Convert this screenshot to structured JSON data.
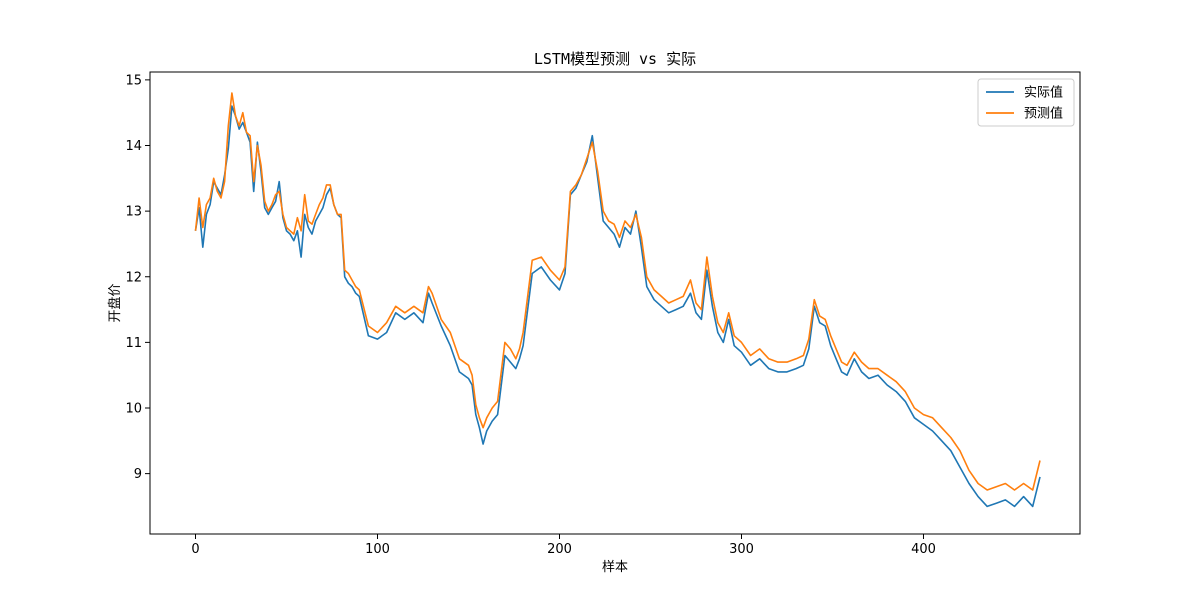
{
  "chart_data": {
    "type": "line",
    "title": "LSTM模型预测 vs 实际",
    "xlabel": "样本",
    "ylabel": "开盘价",
    "xlim": [
      -25,
      486
    ],
    "ylim": [
      8.08,
      15.12
    ],
    "xticks": [
      0,
      100,
      200,
      300,
      400
    ],
    "yticks": [
      9,
      10,
      11,
      12,
      13,
      14,
      15
    ],
    "grid": false,
    "legend_position": "upper right",
    "series": [
      {
        "name": "实际值",
        "color": "#1f77b4",
        "x": [
          0,
          2,
          4,
          6,
          8,
          10,
          12,
          14,
          16,
          18,
          20,
          22,
          24,
          26,
          28,
          30,
          32,
          34,
          36,
          38,
          40,
          42,
          44,
          46,
          48,
          50,
          52,
          54,
          56,
          58,
          60,
          62,
          64,
          66,
          68,
          70,
          72,
          74,
          76,
          78,
          80,
          82,
          84,
          86,
          88,
          90,
          95,
          100,
          105,
          110,
          115,
          120,
          125,
          128,
          130,
          135,
          140,
          145,
          150,
          152,
          154,
          156,
          158,
          160,
          163,
          166,
          170,
          173,
          176,
          178,
          180,
          185,
          190,
          195,
          200,
          203,
          206,
          209,
          212,
          215,
          218,
          221,
          224,
          227,
          230,
          233,
          236,
          239,
          242,
          245,
          248,
          252,
          256,
          260,
          264,
          268,
          272,
          275,
          278,
          281,
          284,
          287,
          290,
          293,
          296,
          300,
          305,
          310,
          315,
          320,
          325,
          330,
          334,
          337,
          340,
          343,
          346,
          349,
          352,
          355,
          358,
          362,
          366,
          370,
          375,
          380,
          385,
          390,
          395,
          400,
          405,
          410,
          415,
          420,
          425,
          430,
          435,
          440,
          445,
          450,
          455,
          460,
          464
        ],
        "values": [
          12.7,
          13.05,
          12.45,
          12.95,
          13.1,
          13.45,
          13.35,
          13.25,
          13.55,
          13.95,
          14.6,
          14.45,
          14.25,
          14.35,
          14.2,
          14.05,
          13.3,
          14.05,
          13.6,
          13.05,
          12.95,
          13.05,
          13.15,
          13.45,
          12.9,
          12.7,
          12.65,
          12.55,
          12.7,
          12.3,
          12.95,
          12.75,
          12.65,
          12.85,
          12.95,
          13.05,
          13.25,
          13.35,
          13.1,
          12.95,
          12.9,
          12.0,
          11.9,
          11.85,
          11.75,
          11.7,
          11.1,
          11.05,
          11.15,
          11.45,
          11.35,
          11.45,
          11.3,
          11.75,
          11.6,
          11.25,
          10.95,
          10.55,
          10.45,
          10.35,
          9.9,
          9.7,
          9.45,
          9.65,
          9.8,
          9.9,
          10.8,
          10.7,
          10.6,
          10.75,
          10.95,
          12.05,
          12.15,
          11.95,
          11.8,
          12.05,
          13.25,
          13.35,
          13.55,
          13.75,
          14.15,
          13.5,
          12.85,
          12.75,
          12.65,
          12.45,
          12.75,
          12.65,
          13.0,
          12.45,
          11.85,
          11.65,
          11.55,
          11.45,
          11.5,
          11.55,
          11.75,
          11.45,
          11.35,
          12.1,
          11.55,
          11.15,
          11.0,
          11.35,
          10.95,
          10.85,
          10.65,
          10.75,
          10.6,
          10.55,
          10.55,
          10.6,
          10.65,
          10.9,
          11.55,
          11.3,
          11.25,
          10.95,
          10.75,
          10.55,
          10.5,
          10.75,
          10.55,
          10.45,
          10.5,
          10.35,
          10.25,
          10.1,
          9.85,
          9.75,
          9.65,
          9.5,
          9.35,
          9.1,
          8.85,
          8.65,
          8.5,
          8.55,
          8.6,
          8.5,
          8.65,
          8.5,
          8.95
        ]
      },
      {
        "name": "预测值",
        "color": "#ff7f0e",
        "x": [
          0,
          2,
          4,
          6,
          8,
          10,
          12,
          14,
          16,
          18,
          20,
          22,
          24,
          26,
          28,
          30,
          32,
          34,
          36,
          38,
          40,
          42,
          44,
          46,
          48,
          50,
          52,
          54,
          56,
          58,
          60,
          62,
          64,
          66,
          68,
          70,
          72,
          74,
          76,
          78,
          80,
          82,
          84,
          86,
          88,
          90,
          95,
          100,
          105,
          110,
          115,
          120,
          125,
          128,
          130,
          135,
          140,
          145,
          150,
          152,
          154,
          156,
          158,
          160,
          163,
          166,
          170,
          173,
          176,
          178,
          180,
          185,
          190,
          195,
          200,
          203,
          206,
          209,
          212,
          215,
          218,
          221,
          224,
          227,
          230,
          233,
          236,
          239,
          242,
          245,
          248,
          252,
          256,
          260,
          264,
          268,
          272,
          275,
          278,
          281,
          284,
          287,
          290,
          293,
          296,
          300,
          305,
          310,
          315,
          320,
          325,
          330,
          334,
          337,
          340,
          343,
          346,
          349,
          352,
          355,
          358,
          362,
          366,
          370,
          375,
          380,
          385,
          390,
          395,
          400,
          405,
          410,
          415,
          420,
          425,
          430,
          435,
          440,
          445,
          450,
          455,
          460,
          464
        ],
        "values": [
          12.7,
          13.2,
          12.75,
          13.1,
          13.2,
          13.5,
          13.3,
          13.2,
          13.45,
          14.3,
          14.8,
          14.45,
          14.3,
          14.5,
          14.2,
          14.15,
          13.45,
          14.0,
          13.7,
          13.15,
          13.0,
          13.1,
          13.25,
          13.3,
          12.95,
          12.75,
          12.7,
          12.65,
          12.9,
          12.7,
          13.25,
          12.85,
          12.8,
          12.95,
          13.1,
          13.2,
          13.4,
          13.4,
          13.1,
          12.95,
          12.95,
          12.1,
          12.05,
          11.95,
          11.85,
          11.8,
          11.25,
          11.15,
          11.3,
          11.55,
          11.45,
          11.55,
          11.45,
          11.85,
          11.75,
          11.35,
          11.15,
          10.75,
          10.65,
          10.5,
          10.05,
          9.85,
          9.7,
          9.85,
          10.0,
          10.1,
          11.0,
          10.9,
          10.75,
          10.9,
          11.15,
          12.25,
          12.3,
          12.1,
          11.95,
          12.15,
          13.3,
          13.4,
          13.55,
          13.8,
          14.05,
          13.6,
          13.0,
          12.85,
          12.8,
          12.6,
          12.85,
          12.75,
          12.95,
          12.6,
          12.0,
          11.8,
          11.7,
          11.6,
          11.65,
          11.7,
          11.95,
          11.6,
          11.5,
          12.3,
          11.7,
          11.3,
          11.15,
          11.45,
          11.1,
          11.0,
          10.8,
          10.9,
          10.75,
          10.7,
          10.7,
          10.75,
          10.8,
          11.05,
          11.65,
          11.4,
          11.35,
          11.1,
          10.9,
          10.7,
          10.65,
          10.85,
          10.7,
          10.6,
          10.6,
          10.5,
          10.4,
          10.25,
          10.0,
          9.9,
          9.85,
          9.7,
          9.55,
          9.35,
          9.05,
          8.85,
          8.75,
          8.8,
          8.85,
          8.75,
          8.85,
          8.75,
          9.2
        ]
      }
    ]
  }
}
